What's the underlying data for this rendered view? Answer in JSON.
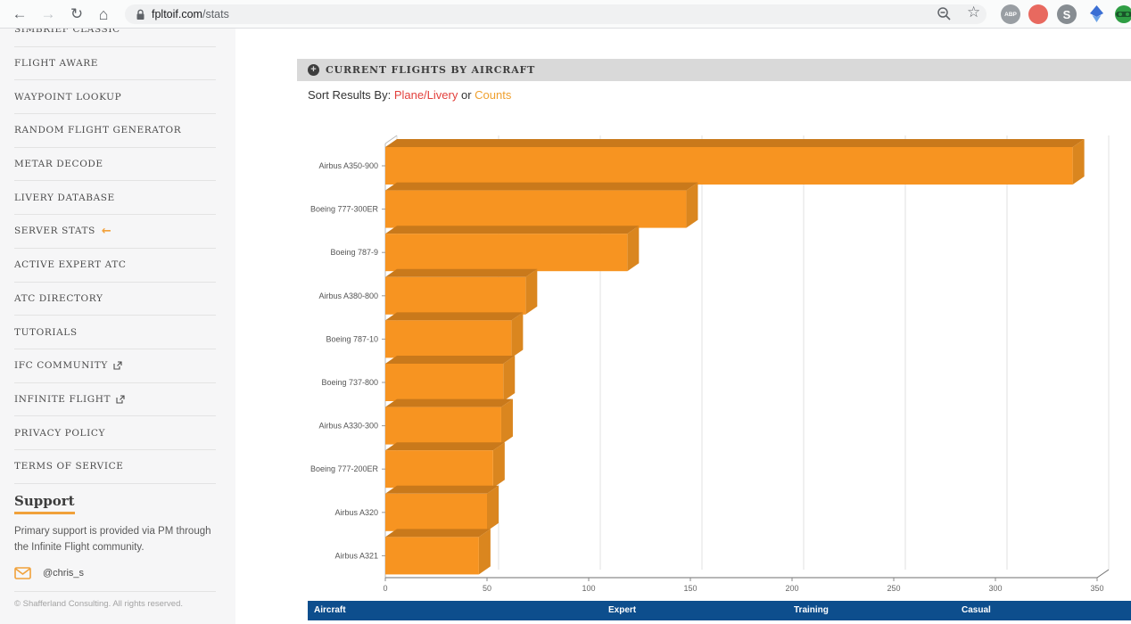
{
  "browser": {
    "url_domain": "fpltoif.com",
    "url_path": "/stats",
    "extensions": [
      {
        "label": "ABP",
        "color": "#999ea3"
      },
      {
        "label": "",
        "color": "#e8695f"
      },
      {
        "label": "S",
        "color": "#878d92"
      },
      {
        "label": "",
        "color": "#3b6fd4"
      },
      {
        "label": "",
        "color": "#2f9e44"
      }
    ]
  },
  "sidebar": {
    "items": [
      {
        "label": "SIMBRIEF CLASSIC"
      },
      {
        "label": "FLIGHT AWARE"
      },
      {
        "label": "WAYPOINT LOOKUP"
      },
      {
        "label": "RANDOM FLIGHT GENERATOR"
      },
      {
        "label": "METAR DECODE"
      },
      {
        "label": "LIVERY DATABASE"
      },
      {
        "label": "SERVER STATS",
        "arrow": "left-arrow"
      },
      {
        "label": "ACTIVE EXPERT ATC"
      },
      {
        "label": "ATC DIRECTORY"
      },
      {
        "label": "TUTORIALS"
      },
      {
        "label": "IFC COMMUNITY",
        "external": true
      },
      {
        "label": "INFINITE FLIGHT",
        "external": true
      },
      {
        "label": "PRIVACY POLICY"
      },
      {
        "label": "TERMS OF SERVICE"
      }
    ],
    "support": {
      "heading": "Support",
      "line1": "Primary support is provided via PM through",
      "line2": "the Infinite Flight community.",
      "contact": "@chris_s"
    },
    "copyright": "© Shafferland Consulting. All rights reserved."
  },
  "main": {
    "panel_title": "CURRENT FLIGHTS BY AIRCRAFT",
    "sort": {
      "prefix": "Sort Results By: ",
      "link1": "Plane/Livery",
      "conjunction": " or ",
      "link2": "Counts"
    }
  },
  "chart_data": {
    "type": "bar",
    "orientation": "horizontal",
    "style": "3d",
    "title": "CURRENT FLIGHTS BY AIRCRAFT",
    "categories": [
      "Airbus A350-900",
      "Boeing 777-300ER",
      "Boeing 787-9",
      "Airbus A380-800",
      "Boeing 787-10",
      "Boeing 737-800",
      "Airbus A330-300",
      "Boeing 777-200ER",
      "Airbus A320",
      "Airbus A321"
    ],
    "values": [
      338,
      148,
      119,
      69,
      62,
      58,
      57,
      53,
      50,
      46
    ],
    "xlabel": "",
    "ylabel": "",
    "xlim": [
      0,
      350
    ],
    "xticks": [
      0,
      50,
      100,
      150,
      200,
      250,
      300,
      350
    ],
    "grid": true,
    "bar_colors": {
      "front": "#F79421",
      "top": "#C9791B",
      "side": "#DA861F"
    }
  },
  "table": {
    "headers": [
      "Aircraft",
      "Expert",
      "Training",
      "Casual"
    ],
    "header_bg": "#0d4e8d"
  }
}
